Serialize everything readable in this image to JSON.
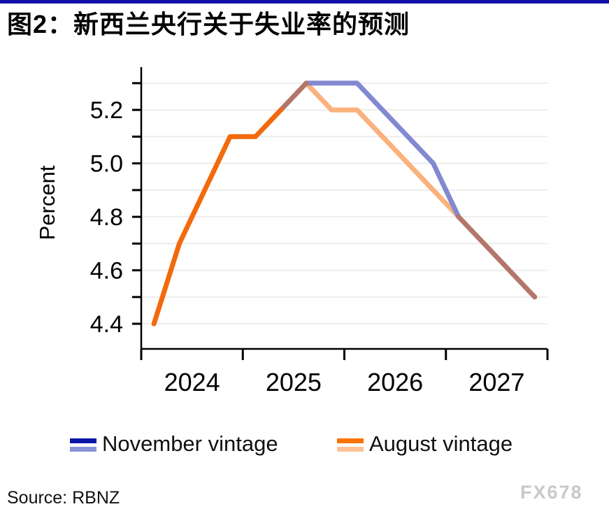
{
  "page": {
    "title": "图2：新西兰央行关于失业率的预测",
    "source": "Source: RBNZ",
    "watermark": "FX678"
  },
  "colors": {
    "top_bar": "#1212AA",
    "august_actual": "#F26A0D",
    "august_forecast": "#FBB17C",
    "november_forecast": "#8289D2",
    "overlap": "#B3766B",
    "gridline": "#EDEDED",
    "axis": "#000000",
    "tick_text": "#000000",
    "watermark": "#C9C9C9"
  },
  "legend": {
    "items": [
      {
        "label": "November vintage",
        "actual_color": "#0C16A6",
        "forecast_color": "#8A92D8"
      },
      {
        "label": "August vintage",
        "actual_color": "#FA7200",
        "forecast_color": "#FBC298"
      }
    ]
  },
  "chart_data": {
    "type": "line",
    "title": "图2：新西兰央行关于失业率的预测",
    "xlabel": "",
    "ylabel": "Percent",
    "x_unit": "quarter",
    "quarters": [
      "2024Q1",
      "2024Q2",
      "2024Q3",
      "2024Q4",
      "2025Q1",
      "2025Q2",
      "2025Q3",
      "2025Q4",
      "2026Q1",
      "2026Q2",
      "2026Q3",
      "2026Q4",
      "2027Q1",
      "2027Q2",
      "2027Q3",
      "2027Q4"
    ],
    "series": [
      {
        "name": "November vintage",
        "values": [
          null,
          null,
          null,
          null,
          null,
          5.2,
          5.3,
          5.3,
          5.3,
          5.2,
          5.1,
          5.0,
          4.8,
          4.7,
          4.6,
          4.5
        ]
      },
      {
        "name": "August vintage",
        "values": [
          4.4,
          4.7,
          4.9,
          5.1,
          5.1,
          5.2,
          5.3,
          5.2,
          5.2,
          5.1,
          5.0,
          4.9,
          4.8,
          4.7,
          4.6,
          4.5
        ]
      }
    ],
    "segments": [
      {
        "series": 1,
        "from": 6,
        "to": 12,
        "color_key": "august_forecast",
        "note": "August forecast (light orange)"
      },
      {
        "series": 0,
        "from": 6,
        "to": 12,
        "color_key": "november_forecast",
        "note": "November forecast (periwinkle)"
      },
      {
        "series": 0,
        "from": 5,
        "to": 6,
        "color_key": "overlap",
        "note": "overlapping rise 5.2->5.3"
      },
      {
        "series": 1,
        "from": 12,
        "to": 15,
        "color_key": "overlap",
        "note": "overlapping descent 4.8->4.5"
      },
      {
        "series": 1,
        "from": 0,
        "to": 5,
        "color_key": "august_actual",
        "note": "actual history (strong orange)"
      }
    ],
    "y_ticks_major": [
      4.4,
      4.6,
      4.8,
      5.0,
      5.2
    ],
    "y_ticks_minor": [
      4.5,
      4.7,
      4.9,
      5.1,
      5.3
    ],
    "gridlines": [
      4.4,
      4.5,
      4.6,
      4.7,
      4.8,
      4.9,
      5.0,
      5.1,
      5.2,
      5.3
    ],
    "x_year_ticks": [
      2024,
      2025,
      2026,
      2027,
      2028
    ],
    "x_year_labels": [
      "2024",
      "2025",
      "2026",
      "2027"
    ],
    "xlim": [
      2024,
      2028
    ],
    "ylim": [
      4.306,
      5.36
    ],
    "grid": "horizontal",
    "legend_position": "bottom"
  }
}
